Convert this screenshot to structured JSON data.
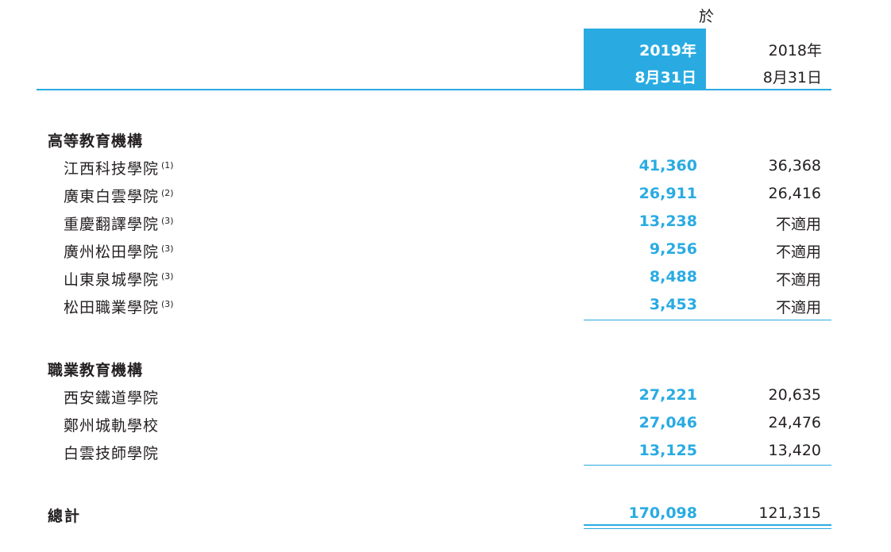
{
  "header": {
    "as_at": "於",
    "col_current_year": "2019年",
    "col_current_date": "8月31日",
    "col_prior_year": "2018年",
    "col_prior_date": "8月31日"
  },
  "higher_education": {
    "title": "高等教育機構",
    "rows": [
      {
        "name": "江西科技學院",
        "note": "(1)",
        "v2019": "41,360",
        "v2018": "36,368"
      },
      {
        "name": "廣東白雲學院",
        "note": "(2)",
        "v2019": "26,911",
        "v2018": "26,416"
      },
      {
        "name": "重慶翻譯學院",
        "note": "(3)",
        "v2019": "13,238",
        "v2018": "不適用"
      },
      {
        "name": "廣州松田學院",
        "note": "(3)",
        "v2019": "9,256",
        "v2018": "不適用"
      },
      {
        "name": "山東泉城學院",
        "note": "(3)",
        "v2019": "8,488",
        "v2018": "不適用"
      },
      {
        "name": "松田職業學院",
        "note": "(3)",
        "v2019": "3,453",
        "v2018": "不適用"
      }
    ]
  },
  "vocational_education": {
    "title": "職業教育機構",
    "rows": [
      {
        "name": "西安鐵道學院",
        "v2019": "27,221",
        "v2018": "20,635"
      },
      {
        "name": "鄭州城軌學校",
        "v2019": "27,046",
        "v2018": "24,476"
      },
      {
        "name": "白雲技師學院",
        "v2019": "13,125",
        "v2018": "13,420"
      }
    ]
  },
  "total": {
    "label": "總計",
    "v2019": "170,098",
    "v2018": "121,315"
  },
  "colors": {
    "accent": "#29abe2",
    "text": "#231f20"
  }
}
